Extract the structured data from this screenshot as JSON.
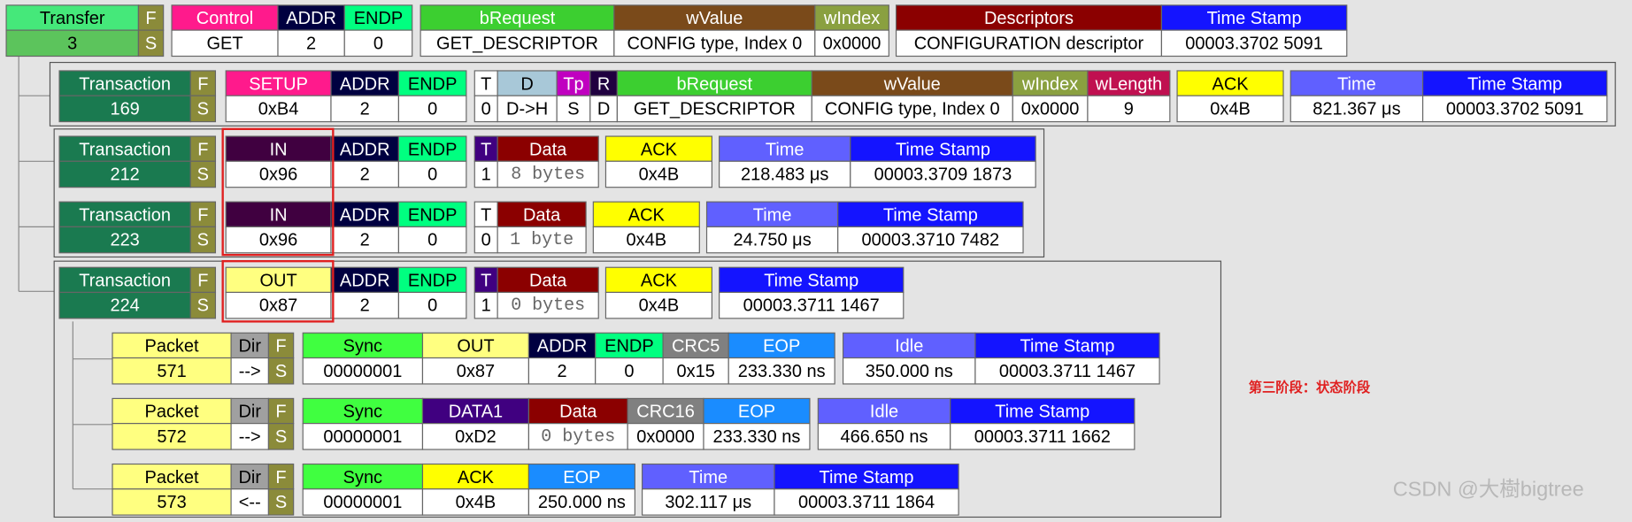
{
  "rows": [
    {
      "cells": [
        {
          "header": "Transfer",
          "value": "3",
          "color": "#45e87a",
          "value_color": "#5cc45c"
        },
        {
          "header": "F",
          "value": "S",
          "color": "#8b8b3a",
          "value_color": "#8b8b3a"
        },
        {
          "header": "Control",
          "value": "GET",
          "color": "#ff1a8c"
        },
        {
          "header": "ADDR",
          "value": "2",
          "color": "#000040"
        },
        {
          "header": "ENDP",
          "value": "0",
          "color": "#00ff80"
        },
        {
          "header": "bRequest",
          "value": "GET_DESCRIPTOR",
          "color": "#3ccf30"
        },
        {
          "header": "wValue",
          "value": "CONFIG type, Index 0",
          "color": "#7a4a1a"
        },
        {
          "header": "wIndex",
          "value": "0x0000",
          "color": "#8aa040"
        },
        {
          "header": "Descriptors",
          "value": "CONFIGURATION descriptor",
          "color": "#8b0000"
        },
        {
          "header": "Time Stamp",
          "value": "00003.3702 5091",
          "color": "#1414ff"
        }
      ]
    },
    {
      "cells": [
        {
          "header": "Transaction",
          "value": "169",
          "color": "#1a7a50",
          "value_color": "#1a7a50"
        },
        {
          "header": "F",
          "value": "S",
          "color": "#8b8b3a",
          "value_color": "#8b8b3a"
        },
        {
          "header": "SETUP",
          "value": "0xB4",
          "color": "#ff1a8c"
        },
        {
          "header": "ADDR",
          "value": "2",
          "color": "#000040"
        },
        {
          "header": "ENDP",
          "value": "0",
          "color": "#00ff80"
        },
        {
          "header": "T",
          "value": "0",
          "color": "#ffffff"
        },
        {
          "header": "D",
          "value": "D->H",
          "color": "#a8c8d8"
        },
        {
          "header": "Tp",
          "value": "S",
          "color": "#c000c0"
        },
        {
          "header": "R",
          "value": "D",
          "color": "#200040"
        },
        {
          "header": "bRequest",
          "value": "GET_DESCRIPTOR",
          "color": "#3ccf30"
        },
        {
          "header": "wValue",
          "value": "CONFIG type, Index 0",
          "color": "#7a4a1a"
        },
        {
          "header": "wIndex",
          "value": "0x0000",
          "color": "#8aa040"
        },
        {
          "header": "wLength",
          "value": "9",
          "color": "#c01050"
        },
        {
          "header": "ACK",
          "value": "0x4B",
          "color": "#ffff00"
        },
        {
          "header": "Time",
          "value": "821.367 μs",
          "color": "#6060ff"
        },
        {
          "header": "Time Stamp",
          "value": "00003.3702 5091",
          "color": "#1414ff"
        }
      ]
    },
    {
      "cells": [
        {
          "header": "Transaction",
          "value": "212",
          "color": "#1a7a50",
          "value_color": "#1a7a50"
        },
        {
          "header": "F",
          "value": "S",
          "color": "#8b8b3a",
          "value_color": "#8b8b3a"
        },
        {
          "header": "IN",
          "value": "0x96",
          "color": "#400040"
        },
        {
          "header": "ADDR",
          "value": "2",
          "color": "#000040"
        },
        {
          "header": "ENDP",
          "value": "0",
          "color": "#00ff80"
        },
        {
          "header": "T",
          "value": "1",
          "color": "#400080"
        },
        {
          "header": "Data",
          "value": "8 bytes",
          "color": "#8b0000",
          "mono": true
        },
        {
          "header": "ACK",
          "value": "0x4B",
          "color": "#ffff00"
        },
        {
          "header": "Time",
          "value": "218.483 μs",
          "color": "#6060ff"
        },
        {
          "header": "Time Stamp",
          "value": "00003.3709 1873",
          "color": "#1414ff"
        }
      ]
    },
    {
      "cells": [
        {
          "header": "Transaction",
          "value": "223",
          "color": "#1a7a50",
          "value_color": "#1a7a50"
        },
        {
          "header": "F",
          "value": "S",
          "color": "#8b8b3a",
          "value_color": "#8b8b3a"
        },
        {
          "header": "IN",
          "value": "0x96",
          "color": "#400040"
        },
        {
          "header": "ADDR",
          "value": "2",
          "color": "#000040"
        },
        {
          "header": "ENDP",
          "value": "0",
          "color": "#00ff80"
        },
        {
          "header": "T",
          "value": "0",
          "color": "#ffffff"
        },
        {
          "header": "Data",
          "value": "1 byte",
          "color": "#8b0000",
          "mono": true
        },
        {
          "header": "ACK",
          "value": "0x4B",
          "color": "#ffff00"
        },
        {
          "header": "Time",
          "value": "24.750 μs",
          "color": "#6060ff"
        },
        {
          "header": "Time Stamp",
          "value": "00003.3710 7482",
          "color": "#1414ff"
        }
      ]
    },
    {
      "cells": [
        {
          "header": "Transaction",
          "value": "224",
          "color": "#1a7a50",
          "value_color": "#1a7a50"
        },
        {
          "header": "F",
          "value": "S",
          "color": "#8b8b3a",
          "value_color": "#8b8b3a"
        },
        {
          "header": "OUT",
          "value": "0x87",
          "color": "#ffff80"
        },
        {
          "header": "ADDR",
          "value": "2",
          "color": "#000040"
        },
        {
          "header": "ENDP",
          "value": "0",
          "color": "#00ff80"
        },
        {
          "header": "T",
          "value": "1",
          "color": "#400080"
        },
        {
          "header": "Data",
          "value": "0 bytes",
          "color": "#8b0000",
          "mono": true
        },
        {
          "header": "ACK",
          "value": "0x4B",
          "color": "#ffff00"
        },
        {
          "header": "Time Stamp",
          "value": "00003.3711 1467",
          "color": "#1414ff"
        }
      ]
    },
    {
      "cells": [
        {
          "header": "Packet",
          "value": "571",
          "color": "#ffff80",
          "value_color": "#ffff80"
        },
        {
          "header": "Dir",
          "value": "-->",
          "color": "#a0a0a0"
        },
        {
          "header": "F",
          "value": "S",
          "color": "#8b8b3a",
          "value_color": "#8b8b3a"
        },
        {
          "header": "Sync",
          "value": "00000001",
          "color": "#40ff40"
        },
        {
          "header": "OUT",
          "value": "0x87",
          "color": "#ffff80"
        },
        {
          "header": "ADDR",
          "value": "2",
          "color": "#000040"
        },
        {
          "header": "ENDP",
          "value": "0",
          "color": "#00ff80"
        },
        {
          "header": "CRC5",
          "value": "0x15",
          "color": "#808080"
        },
        {
          "header": "EOP",
          "value": "233.330 ns",
          "color": "#1a8cff"
        },
        {
          "header": "Idle",
          "value": "350.000 ns",
          "color": "#6060ff"
        },
        {
          "header": "Time Stamp",
          "value": "00003.3711 1467",
          "color": "#1414ff"
        }
      ]
    },
    {
      "cells": [
        {
          "header": "Packet",
          "value": "572",
          "color": "#ffff80",
          "value_color": "#ffff80"
        },
        {
          "header": "Dir",
          "value": "-->",
          "color": "#a0a0a0"
        },
        {
          "header": "F",
          "value": "S",
          "color": "#8b8b3a",
          "value_color": "#8b8b3a"
        },
        {
          "header": "Sync",
          "value": "00000001",
          "color": "#40ff40"
        },
        {
          "header": "DATA1",
          "value": "0xD2",
          "color": "#400080"
        },
        {
          "header": "Data",
          "value": "0 bytes",
          "color": "#8b0000",
          "mono": true
        },
        {
          "header": "CRC16",
          "value": "0x0000",
          "color": "#808080"
        },
        {
          "header": "EOP",
          "value": "233.330 ns",
          "color": "#1a8cff"
        },
        {
          "header": "Idle",
          "value": "466.650 ns",
          "color": "#6060ff"
        },
        {
          "header": "Time Stamp",
          "value": "00003.3711 1662",
          "color": "#1414ff"
        }
      ]
    },
    {
      "cells": [
        {
          "header": "Packet",
          "value": "573",
          "color": "#ffff80",
          "value_color": "#ffff80"
        },
        {
          "header": "Dir",
          "value": "<--",
          "color": "#a0a0a0"
        },
        {
          "header": "F",
          "value": "S",
          "color": "#8b8b3a",
          "value_color": "#8b8b3a"
        },
        {
          "header": "Sync",
          "value": "00000001",
          "color": "#40ff40"
        },
        {
          "header": "ACK",
          "value": "0x4B",
          "color": "#ffff00"
        },
        {
          "header": "EOP",
          "value": "250.000 ns",
          "color": "#1a8cff"
        },
        {
          "header": "Time",
          "value": "302.117 μs",
          "color": "#6060ff"
        },
        {
          "header": "Time Stamp",
          "value": "00003.3711 1864",
          "color": "#1414ff"
        }
      ]
    }
  ],
  "annotation": "第三阶段：状态阶段",
  "watermark": "CSDN @大樹bigtree"
}
